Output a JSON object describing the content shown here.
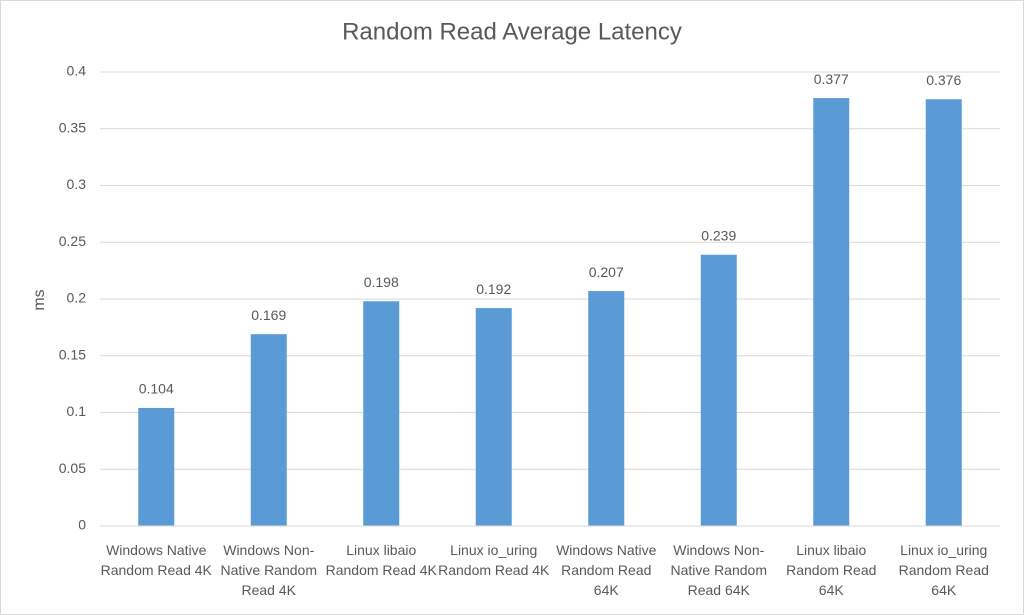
{
  "chart_data": {
    "type": "bar",
    "title": "Random Read Average Latency",
    "y_label": "ms",
    "categories": [
      "Windows Native Random Read 4K",
      "Windows Non-Native Random Read 4K",
      "Linux libaio Random Read 4K",
      "Linux io_uring Random Read 4K",
      "Windows Native Random Read 64K",
      "Windows Non-Native Random Read 64K",
      "Linux libaio Random Read 64K",
      "Linux io_uring Random Read 64K"
    ],
    "values": [
      0.104,
      0.169,
      0.198,
      0.192,
      0.207,
      0.239,
      0.377,
      0.376
    ],
    "color": "#5b9bd5",
    "ylim": [
      0,
      0.4
    ],
    "yticks": [
      0,
      0.05,
      0.1,
      0.15,
      0.2,
      0.25,
      0.3,
      0.35,
      0.4
    ],
    "grid": true
  }
}
